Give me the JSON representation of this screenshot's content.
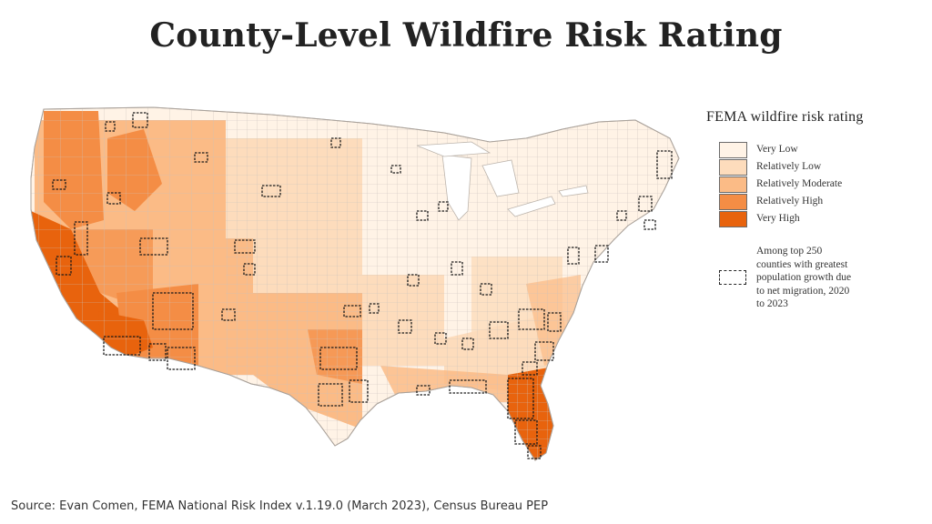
{
  "title": "County-Level Wildfire Risk Rating",
  "legend": {
    "title": "FEMA wildfire risk rating",
    "categories": [
      {
        "label": "Very Low",
        "color": "#fff3e6"
      },
      {
        "label": "Relatively Low",
        "color": "#fddcbc"
      },
      {
        "label": "Relatively Moderate",
        "color": "#fbbb86"
      },
      {
        "label": "Relatively High",
        "color": "#f48d45"
      },
      {
        "label": "Very High",
        "color": "#e8630d"
      }
    ],
    "migration_label": "Among top 250\ncounties with greatest\npopulation growth due\nto net migration, 2020\nto 2023"
  },
  "source": "Source: Evan Comen, FEMA National Risk Index v.1.19.0 (March 2023), Census Bureau PEP"
}
